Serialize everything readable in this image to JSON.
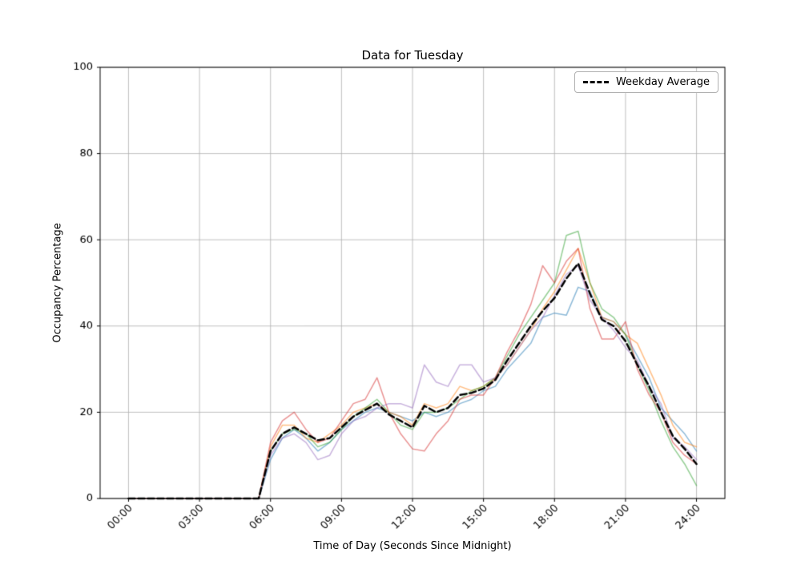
{
  "figure": {
    "title": "Data for Tuesday",
    "xlabel": "Time of Day (Seconds Since Midnight)",
    "ylabel": "Occupancy Percentage",
    "legend_label": "Weekday Average"
  },
  "chart_data": {
    "type": "line",
    "title": "Data for Tuesday",
    "xlabel": "Time of Day (Seconds Since Midnight)",
    "ylabel": "Occupancy Percentage",
    "xlim": [
      -1.2,
      25.2
    ],
    "ylim": [
      0,
      100
    ],
    "grid": true,
    "legend": {
      "label": "Weekday Average",
      "position": "upper right"
    },
    "x_tick_hours": [
      0,
      3,
      6,
      9,
      12,
      15,
      18,
      21,
      24
    ],
    "x_tick_labels": [
      "00:00",
      "03:00",
      "06:00",
      "09:00",
      "12:00",
      "15:00",
      "18:00",
      "21:00",
      "24:00"
    ],
    "y_ticks": [
      0,
      20,
      40,
      60,
      80,
      100
    ],
    "x_hours": [
      0,
      0.5,
      1,
      1.5,
      2,
      2.5,
      3,
      3.5,
      4,
      4.5,
      5,
      5.5,
      6,
      6.5,
      7,
      7.5,
      8,
      8.5,
      9,
      9.5,
      10,
      10.5,
      11,
      11.5,
      12,
      12.5,
      13,
      13.5,
      14,
      14.5,
      15,
      15.5,
      16,
      16.5,
      17,
      17.5,
      18,
      18.5,
      19,
      19.5,
      20,
      20.5,
      21,
      21.5,
      22,
      22.5,
      23,
      23.5,
      24
    ],
    "series": [
      {
        "name": "day-line-1",
        "color": "#1f77b4",
        "alpha": 0.5,
        "linewidth": 1.5,
        "values": [
          0,
          0,
          0,
          0,
          0,
          0,
          0,
          0,
          0,
          0,
          0,
          0,
          9,
          14,
          16,
          14,
          11,
          13,
          16,
          18,
          20,
          21,
          20,
          19,
          18,
          20,
          19,
          20,
          22,
          23,
          25,
          26,
          30,
          33,
          36,
          42,
          43,
          42.5,
          49,
          48,
          42,
          41,
          38,
          33,
          28,
          21,
          18,
          15,
          11
        ]
      },
      {
        "name": "day-line-2",
        "color": "#ff7f0e",
        "alpha": 0.5,
        "linewidth": 1.5,
        "values": [
          0,
          0,
          0,
          0,
          0,
          0,
          0,
          0,
          0,
          0,
          0,
          0,
          12,
          17,
          17,
          14,
          13,
          15,
          17,
          20,
          21,
          22,
          20,
          19,
          17,
          22,
          21,
          22,
          26,
          25,
          26,
          28,
          31,
          35,
          39,
          44,
          48,
          53,
          58,
          50,
          42,
          41,
          38,
          36,
          30,
          24,
          17,
          13,
          12
        ]
      },
      {
        "name": "day-line-3",
        "color": "#2ca02c",
        "alpha": 0.5,
        "linewidth": 1.5,
        "values": [
          0,
          0,
          0,
          0,
          0,
          0,
          0,
          0,
          0,
          0,
          0,
          0,
          11,
          15,
          16,
          15,
          12,
          13,
          16,
          19,
          21,
          23,
          20,
          17,
          16,
          20,
          20,
          21,
          23,
          25,
          26,
          28,
          33,
          38,
          42,
          46,
          50,
          61,
          62,
          50,
          44,
          42,
          38,
          31,
          25,
          18,
          12,
          8,
          3
        ]
      },
      {
        "name": "day-line-4",
        "color": "#d62728",
        "alpha": 0.5,
        "linewidth": 1.5,
        "values": [
          0,
          0,
          0,
          0,
          0,
          0,
          0,
          0,
          0,
          0,
          0,
          0,
          13,
          18,
          20,
          16,
          13,
          14,
          18,
          22,
          23,
          28,
          20,
          15,
          11.5,
          11,
          15,
          18,
          23,
          24,
          24,
          28,
          34,
          39,
          45,
          54,
          50,
          55,
          58,
          44,
          37,
          37,
          41,
          30,
          24,
          20,
          13,
          10,
          8
        ]
      },
      {
        "name": "day-line-5",
        "color": "#9467bd",
        "alpha": 0.5,
        "linewidth": 1.5,
        "values": [
          0,
          0,
          0,
          0,
          0,
          0,
          0,
          0,
          0,
          0,
          0,
          0,
          10,
          14,
          15,
          13,
          9,
          10,
          15,
          18,
          19,
          21,
          22,
          22,
          21,
          31,
          27,
          26,
          31,
          31,
          27,
          28,
          31,
          35,
          39,
          42,
          47,
          52,
          54,
          46,
          42,
          39,
          35,
          32,
          26,
          22,
          14,
          12,
          9
        ]
      }
    ],
    "average_series": {
      "name": "Weekday Average",
      "color": "#000000",
      "alpha": 1,
      "linewidth": 2.5,
      "dash": [
        8,
        4
      ],
      "values": [
        0,
        0,
        0,
        0,
        0,
        0,
        0,
        0,
        0,
        0,
        0,
        0,
        11,
        15,
        16.5,
        15,
        13.5,
        14,
        16.5,
        19,
        20.5,
        22,
        19.5,
        18,
        16.5,
        21.5,
        20,
        21,
        24,
        24.5,
        25.5,
        27.5,
        32,
        36,
        40,
        43.5,
        46.5,
        51,
        54.5,
        47.5,
        41.5,
        40,
        36.5,
        31,
        26,
        20,
        14.5,
        11.5,
        8
      ]
    }
  },
  "style": {
    "grid_color": "#b0b0b0",
    "spine_color": "#000000",
    "tick_label_color": "#000000",
    "background_color": "#ffffff"
  }
}
